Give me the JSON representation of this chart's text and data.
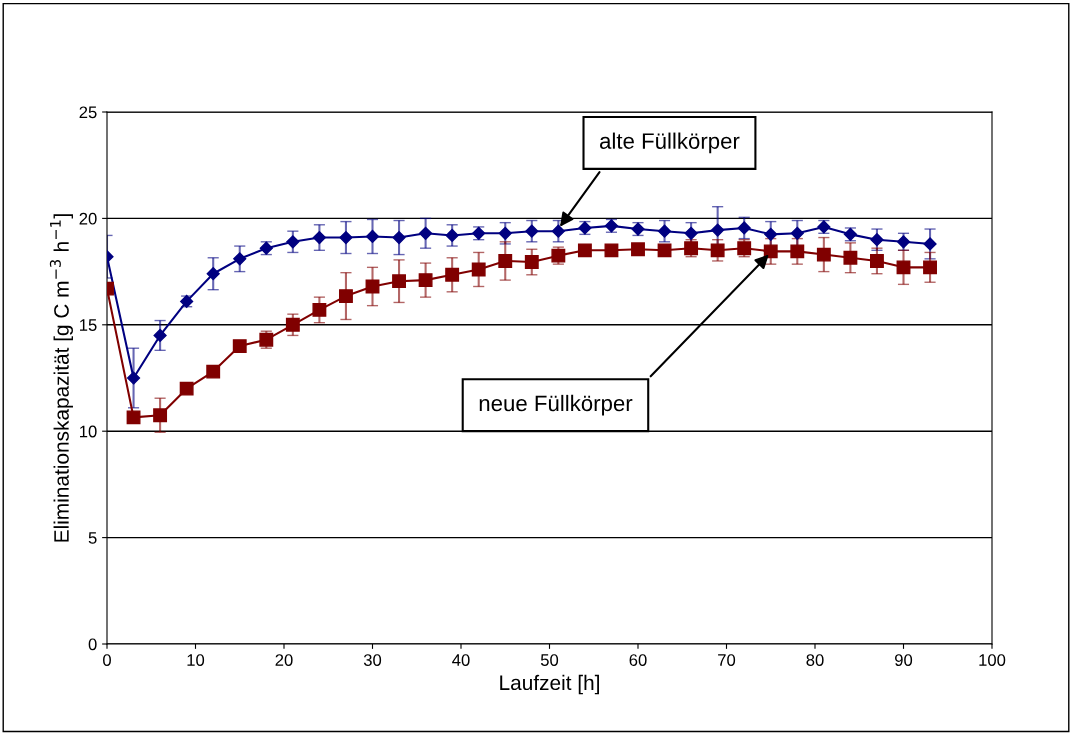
{
  "chart_data": {
    "type": "line",
    "xlabel": "Laufzeit [h]",
    "ylabel": "Eliminationskapazität [g C m$^{−3}$ h$^{−1}$]",
    "x": [
      0,
      3,
      6,
      9,
      12,
      15,
      18,
      21,
      24,
      27,
      30,
      33,
      36,
      39,
      42,
      45,
      48,
      51,
      54,
      57,
      60,
      63,
      66,
      69,
      72,
      75,
      78,
      81,
      84,
      87,
      90,
      93
    ],
    "series": [
      {
        "color": "#000080",
        "marker": "diamond",
        "values": [
          18.2,
          12.5,
          14.5,
          16.1,
          17.4,
          18.1,
          18.6,
          18.9,
          19.1,
          19.1,
          19.15,
          19.1,
          19.3,
          19.2,
          19.3,
          19.3,
          19.4,
          19.4,
          19.55,
          19.65,
          19.5,
          19.4,
          19.3,
          19.45,
          19.55,
          19.25,
          19.3,
          19.6,
          19.25,
          19.0,
          18.9,
          18.8
        ],
        "errors": [
          1.0,
          1.4,
          0.7,
          0.25,
          0.75,
          0.6,
          0.3,
          0.5,
          0.6,
          0.75,
          0.8,
          0.8,
          0.7,
          0.5,
          0.3,
          0.5,
          0.5,
          0.5,
          0.3,
          0.3,
          0.3,
          0.5,
          0.5,
          1.1,
          0.5,
          0.6,
          0.6,
          0.3,
          0.3,
          0.5,
          0.4,
          0.7
        ]
      },
      {
        "color": "#800000",
        "marker": "square",
        "values": [
          16.7,
          10.65,
          10.75,
          12.0,
          12.8,
          14.0,
          14.3,
          15.0,
          15.7,
          16.35,
          16.8,
          17.05,
          17.1,
          17.35,
          17.6,
          18.0,
          17.95,
          18.25,
          18.5,
          18.5,
          18.55,
          18.5,
          18.6,
          18.5,
          18.6,
          18.45,
          18.45,
          18.3,
          18.15,
          18.0,
          17.7,
          17.7
        ],
        "errors": [
          null,
          null,
          0.8,
          null,
          null,
          null,
          0.4,
          0.5,
          0.6,
          1.1,
          0.9,
          1.0,
          0.8,
          0.8,
          0.8,
          0.9,
          0.6,
          0.4,
          null,
          null,
          null,
          null,
          0.4,
          0.5,
          0.4,
          0.6,
          0.6,
          0.8,
          0.7,
          0.6,
          0.8,
          0.7
        ]
      }
    ],
    "xlim": [
      0,
      100
    ],
    "xticks": [
      0,
      10,
      20,
      30,
      40,
      50,
      60,
      70,
      80,
      90,
      100
    ],
    "ylim": [
      0,
      25
    ],
    "yticks": [
      0,
      5,
      10,
      15,
      20,
      25
    ],
    "grid": "y",
    "legend": false,
    "annotations": [
      {
        "text": "alte Füllkörper",
        "x": 51,
        "y": 19.5
      },
      {
        "text": "neue Füllkörper",
        "x": 75,
        "y": 18.4
      }
    ]
  }
}
